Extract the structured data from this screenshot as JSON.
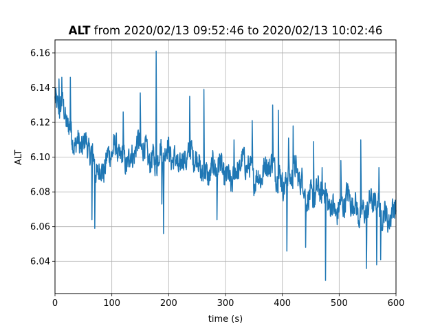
{
  "chart_data": {
    "type": "line",
    "title_bold": "ALT",
    "title_rest": " from 2020/02/13 09:52:46 to 2020/02/13 10:02:46",
    "xlabel": "time (s)",
    "ylabel": "ALT",
    "xlim": [
      0,
      600
    ],
    "ylim": [
      6.0215,
      6.1675
    ],
    "xticks": [
      0,
      100,
      200,
      300,
      400,
      500,
      600
    ],
    "yticks": [
      6.04,
      6.06,
      6.08,
      6.1,
      6.12,
      6.14,
      6.16
    ],
    "grid": true,
    "color": "#1f77b4",
    "series": [
      {
        "trend": [
          [
            0,
            6.13
          ],
          [
            25,
            6.118
          ],
          [
            50,
            6.105
          ],
          [
            75,
            6.095
          ],
          [
            100,
            6.1
          ],
          [
            125,
            6.102
          ],
          [
            150,
            6.103
          ],
          [
            175,
            6.102
          ],
          [
            200,
            6.1
          ],
          [
            225,
            6.1
          ],
          [
            250,
            6.097
          ],
          [
            275,
            6.092
          ],
          [
            300,
            6.09
          ],
          [
            325,
            6.093
          ],
          [
            350,
            6.092
          ],
          [
            375,
            6.092
          ],
          [
            400,
            6.09
          ],
          [
            425,
            6.087
          ],
          [
            450,
            6.08
          ],
          [
            475,
            6.075
          ],
          [
            500,
            6.073
          ],
          [
            525,
            6.072
          ],
          [
            550,
            6.071
          ],
          [
            575,
            6.07
          ],
          [
            600,
            6.069
          ]
        ],
        "noise_amplitude": 0.01,
        "spikes": [
          [
            7,
            6.145
          ],
          [
            12,
            6.146
          ],
          [
            27,
            6.146
          ],
          [
            65,
            6.064
          ],
          [
            70,
            6.059
          ],
          [
            120,
            6.126
          ],
          [
            150,
            6.137
          ],
          [
            178,
            6.161
          ],
          [
            188,
            6.073
          ],
          [
            191,
            6.056
          ],
          [
            237,
            6.135
          ],
          [
            262,
            6.139
          ],
          [
            285,
            6.064
          ],
          [
            315,
            6.11
          ],
          [
            347,
            6.121
          ],
          [
            383,
            6.13
          ],
          [
            393,
            6.127
          ],
          [
            408,
            6.046
          ],
          [
            411,
            6.111
          ],
          [
            419,
            6.118
          ],
          [
            441,
            6.048
          ],
          [
            455,
            6.109
          ],
          [
            470,
            6.094
          ],
          [
            476,
            6.029
          ],
          [
            503,
            6.098
          ],
          [
            538,
            6.11
          ],
          [
            548,
            6.036
          ],
          [
            566,
            6.038
          ],
          [
            570,
            6.094
          ],
          [
            573,
            6.041
          ]
        ]
      }
    ]
  }
}
